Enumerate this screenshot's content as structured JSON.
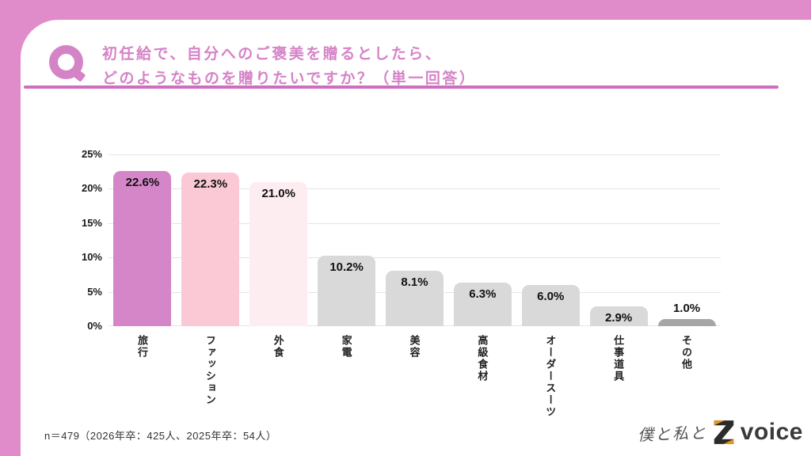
{
  "colors": {
    "frame_pink": "#e18cca",
    "accent_pink": "#d583c7",
    "divider_pink": "#cf6dbf",
    "logo_orange": "#e8961e",
    "logo_dark": "#3a3a3a"
  },
  "header": {
    "q_label": "Q",
    "title_line1": "初任給で、自分へのご褒美を贈るとしたら、",
    "title_line2": "どのようなものを贈りたいですか？（単一回答）"
  },
  "chart_data": {
    "type": "bar",
    "title": "初任給で、自分へのご褒美を贈るとしたら、どのようなものを贈りたいですか？（単一回答）",
    "categories": [
      "旅行",
      "ファッション",
      "外食",
      "家電",
      "美容",
      "高級食材",
      "オーダースーツ",
      "仕事道具",
      "その他"
    ],
    "values": [
      22.6,
      22.3,
      21.0,
      10.2,
      8.1,
      6.3,
      6.0,
      2.9,
      1.0
    ],
    "value_labels": [
      "22.6%",
      "22.3%",
      "21.0%",
      "10.2%",
      "8.1%",
      "6.3%",
      "6.0%",
      "2.9%",
      "1.0%"
    ],
    "bar_colors": [
      "#d586c8",
      "#fbc9d6",
      "#fdedf1",
      "#d9d9d9",
      "#d9d9d9",
      "#d9d9d9",
      "#d9d9d9",
      "#d9d9d9",
      "#a6a6a6"
    ],
    "xlabel": "",
    "ylabel": "",
    "ylim": [
      0,
      25
    ],
    "ytick_values": [
      0,
      5,
      10,
      15,
      20,
      25
    ],
    "ytick_labels": [
      "0%",
      "5%",
      "10%",
      "15%",
      "20%",
      "25%"
    ],
    "grid": true,
    "legend": false
  },
  "footer": {
    "sample_note": "n＝479（2026年卒：425人、2025年卒：54人）",
    "logo_handwritten": "僕と私と",
    "logo_z": "Z",
    "logo_voice": "voice"
  }
}
